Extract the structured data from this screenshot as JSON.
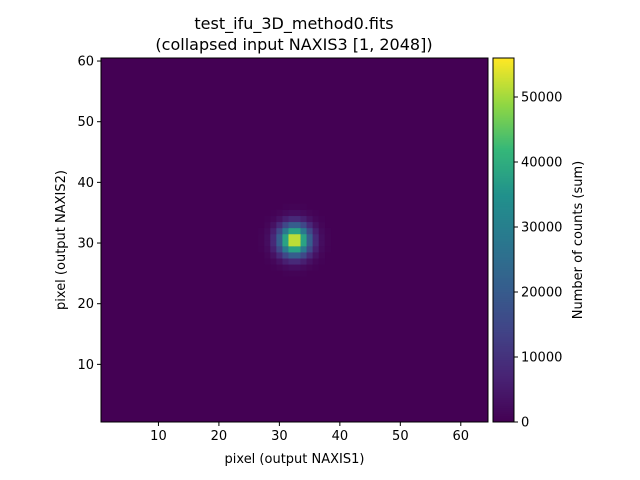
{
  "chart_data": {
    "type": "heatmap",
    "title_line1": "test_ifu_3D_method0.fits",
    "title_line2": "(collapsed input NAXIS3 [1, 2048])",
    "xlabel": "pixel (output NAXIS1)",
    "ylabel": "pixel (output NAXIS2)",
    "xlim": [
      0.5,
      64.5
    ],
    "ylim": [
      0.5,
      60.5
    ],
    "xticks": [
      10,
      20,
      30,
      40,
      50,
      60
    ],
    "yticks": [
      10,
      20,
      30,
      40,
      50,
      60
    ],
    "nx": 64,
    "ny": 60,
    "colormap": "viridis",
    "background_value": 0,
    "source": {
      "x_center": 32.5,
      "y_center": 30.5,
      "sigma": 1.8,
      "peak": 56000
    },
    "colorbar": {
      "label": "Number of counts (sum)",
      "vmin": 0,
      "vmax": 56000,
      "ticks": [
        0,
        10000,
        20000,
        30000,
        40000,
        50000
      ]
    },
    "colors": {
      "viridis_low": "#440154",
      "viridis_high": "#fde725"
    }
  }
}
